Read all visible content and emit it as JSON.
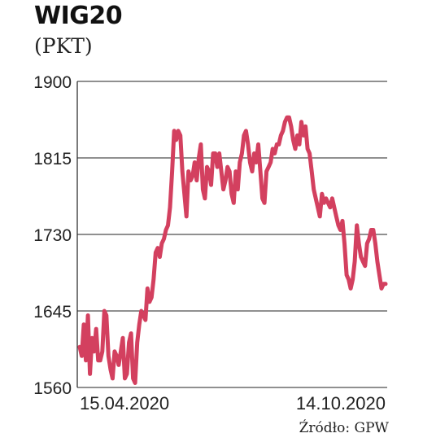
{
  "chart_data": {
    "type": "line",
    "title": "WIG20",
    "subtitle": "(PKT)",
    "xlabel": "",
    "ylabel": "",
    "ylim": [
      1560,
      1900
    ],
    "yticks": [
      1560,
      1645,
      1730,
      1815,
      1900
    ],
    "xticks": [
      "15.04.2020",
      "14.10.2020"
    ],
    "grid": true,
    "color": "#d3405f",
    "series": [
      {
        "values": [
          1605,
          1595,
          1630,
          1590,
          1640,
          1575,
          1615,
          1600,
          1625,
          1590,
          1590,
          1600,
          1645,
          1640,
          1595,
          1580,
          1570,
          1600,
          1595,
          1585,
          1600,
          1615,
          1570,
          1575,
          1610,
          1620,
          1570,
          1565,
          1610,
          1630,
          1645,
          1640,
          1635,
          1670,
          1655,
          1660,
          1680,
          1710,
          1715,
          1705,
          1720,
          1725,
          1735,
          1740,
          1760,
          1800,
          1845,
          1835,
          1845,
          1840,
          1800,
          1775,
          1750,
          1800,
          1790,
          1795,
          1810,
          1790,
          1815,
          1830,
          1780,
          1770,
          1805,
          1800,
          1785,
          1820,
          1820,
          1805,
          1820,
          1800,
          1780,
          1790,
          1805,
          1800,
          1775,
          1765,
          1800,
          1780,
          1810,
          1820,
          1840,
          1845,
          1830,
          1810,
          1800,
          1820,
          1810,
          1830,
          1800,
          1770,
          1765,
          1800,
          1805,
          1810,
          1825,
          1820,
          1830,
          1830,
          1840,
          1845,
          1855,
          1860,
          1860,
          1850,
          1835,
          1825,
          1840,
          1830,
          1855,
          1840,
          1850,
          1825,
          1820,
          1800,
          1780,
          1770,
          1760,
          1750,
          1775,
          1765,
          1770,
          1765,
          1760,
          1770,
          1760,
          1750,
          1740,
          1735,
          1745,
          1720,
          1685,
          1680,
          1670,
          1680,
          1700,
          1740,
          1720,
          1705,
          1700,
          1695,
          1720,
          1725,
          1735,
          1735,
          1720,
          1700,
          1685,
          1670,
          1675,
          1675
        ]
      }
    ]
  },
  "source": "Źródło: GPW"
}
